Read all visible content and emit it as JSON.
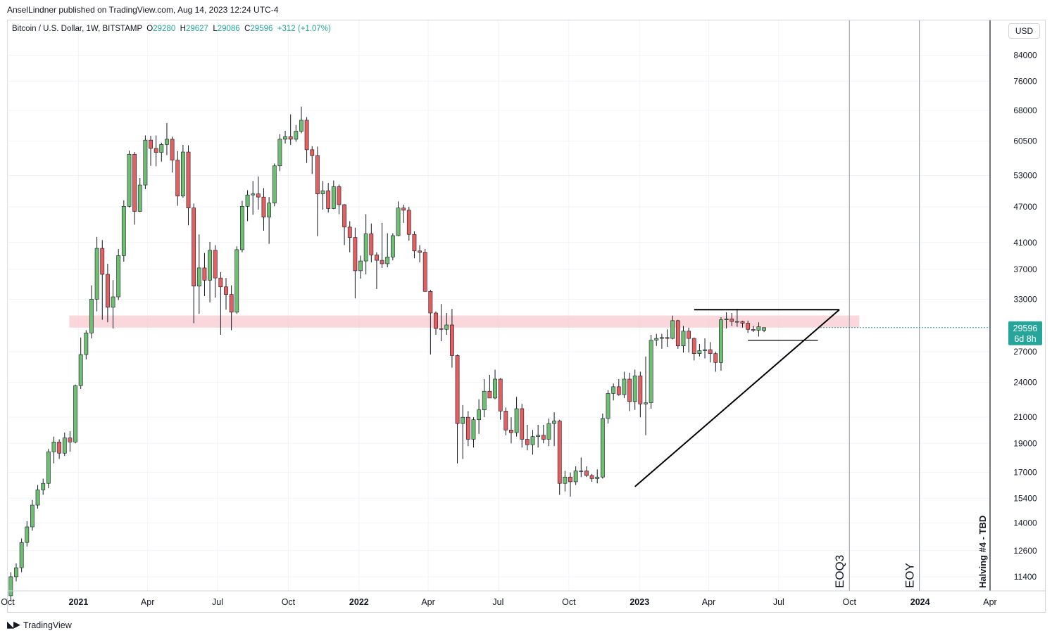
{
  "header": {
    "published_by": "AnselLindner published on TradingView.com, Aug 14, 2023 12:24 UTC-4"
  },
  "legend": {
    "symbol": "Bitcoin / U.S. Dollar, 1W, BITSTAMP",
    "open_label": "O",
    "open": "29280",
    "high_label": "H",
    "high": "29627",
    "low_label": "L",
    "low": "29086",
    "close_label": "C",
    "close": "29596",
    "change": "+312 (+1.07%)"
  },
  "currency_button": "USD",
  "price_tag": {
    "price": "29596",
    "countdown": "6d 8h"
  },
  "footer": {
    "brand": "TradingView"
  },
  "colors": {
    "up": "#26a69a",
    "up_fill": "#6fbf73",
    "down": "#ef5350",
    "down_fill": "#e45f60",
    "zone": "#f8c9cf",
    "tag": "#26a69a"
  },
  "chart_data": {
    "type": "candlestick",
    "scale": "log",
    "ylim": [
      10800,
      96000
    ],
    "x_range": [
      "2020-10-01",
      "2024-04-01"
    ],
    "y_ticks": [
      "84000",
      "76000",
      "68000",
      "60500",
      "53000",
      "47000",
      "41000",
      "37000",
      "33000",
      "29596",
      "27000",
      "24000",
      "21000",
      "19000",
      "17000",
      "15400",
      "14000",
      "12600",
      "11400"
    ],
    "x_ticks": [
      {
        "date": "2020-10-01",
        "label": "Oct",
        "bold": false
      },
      {
        "date": "2021-01-01",
        "label": "2021",
        "bold": true
      },
      {
        "date": "2021-04-01",
        "label": "Apr",
        "bold": false
      },
      {
        "date": "2021-07-01",
        "label": "Jul",
        "bold": false
      },
      {
        "date": "2021-10-01",
        "label": "Oct",
        "bold": false
      },
      {
        "date": "2022-01-01",
        "label": "2022",
        "bold": true
      },
      {
        "date": "2022-04-01",
        "label": "Apr",
        "bold": false
      },
      {
        "date": "2022-07-01",
        "label": "Jul",
        "bold": false
      },
      {
        "date": "2022-10-01",
        "label": "Oct",
        "bold": false
      },
      {
        "date": "2023-01-01",
        "label": "2023",
        "bold": true
      },
      {
        "date": "2023-04-01",
        "label": "Apr",
        "bold": false
      },
      {
        "date": "2023-07-01",
        "label": "Jul",
        "bold": false
      },
      {
        "date": "2023-10-01",
        "label": "Oct",
        "bold": false
      },
      {
        "date": "2024-01-01",
        "label": "2024",
        "bold": true
      },
      {
        "date": "2024-04-01",
        "label": "Apr",
        "bold": false
      }
    ],
    "candles_ohlc_weekly": [
      [
        10600,
        11600,
        10400,
        11400
      ],
      [
        11400,
        12000,
        11200,
        11800
      ],
      [
        11800,
        13200,
        11600,
        13000
      ],
      [
        13000,
        14100,
        12800,
        13800
      ],
      [
        13800,
        15300,
        13600,
        15000
      ],
      [
        15000,
        16200,
        14800,
        15900
      ],
      [
        15900,
        16600,
        15600,
        16300
      ],
      [
        16300,
        18600,
        16000,
        18400
      ],
      [
        18400,
        19500,
        17600,
        19100
      ],
      [
        19100,
        19300,
        17900,
        18300
      ],
      [
        18300,
        19800,
        18100,
        19400
      ],
      [
        19400,
        19900,
        18400,
        19100
      ],
      [
        19100,
        23800,
        19000,
        23700
      ],
      [
        23700,
        28500,
        23400,
        26700
      ],
      [
        26700,
        29300,
        26200,
        29000
      ],
      [
        29000,
        34800,
        28400,
        33000
      ],
      [
        33000,
        41900,
        31500,
        40100
      ],
      [
        40100,
        41400,
        30500,
        36300
      ],
      [
        36300,
        37800,
        30200,
        32000
      ],
      [
        32000,
        35500,
        29500,
        33300
      ],
      [
        33300,
        40000,
        32900,
        39000
      ],
      [
        39000,
        48200,
        38100,
        47100
      ],
      [
        47100,
        58300,
        46900,
        57500
      ],
      [
        57500,
        58000,
        43900,
        46200
      ],
      [
        46200,
        52500,
        46100,
        51100
      ],
      [
        51100,
        61800,
        50300,
        60700
      ],
      [
        60700,
        61700,
        55000,
        58800
      ],
      [
        58800,
        61800,
        54900,
        57900
      ],
      [
        57900,
        60100,
        55900,
        59700
      ],
      [
        59700,
        64800,
        57300,
        60900
      ],
      [
        60900,
        61500,
        53600,
        56200
      ],
      [
        56200,
        58200,
        47200,
        49000
      ],
      [
        49000,
        59600,
        48700,
        58000
      ],
      [
        58000,
        59500,
        43800,
        46800
      ],
      [
        46800,
        47600,
        30100,
        34700
      ],
      [
        34700,
        42300,
        31200,
        37200
      ],
      [
        37200,
        39400,
        33400,
        35500
      ],
      [
        35500,
        41100,
        32600,
        39800
      ],
      [
        39800,
        40600,
        33200,
        35800
      ],
      [
        35800,
        36600,
        28800,
        34600
      ],
      [
        34600,
        35800,
        31700,
        33600
      ],
      [
        33600,
        34800,
        29300,
        31400
      ],
      [
        31400,
        40400,
        31200,
        39900
      ],
      [
        39900,
        48100,
        39500,
        47100
      ],
      [
        47100,
        50100,
        44500,
        49200
      ],
      [
        49200,
        51900,
        45600,
        49400
      ],
      [
        49400,
        52800,
        46500,
        48800
      ],
      [
        48800,
        50500,
        42900,
        45200
      ],
      [
        45200,
        48800,
        40800,
        47700
      ],
      [
        47700,
        55500,
        47100,
        55000
      ],
      [
        55000,
        62100,
        53900,
        60900
      ],
      [
        60900,
        62900,
        59900,
        61500
      ],
      [
        61500,
        67000,
        59600,
        60900
      ],
      [
        60900,
        64300,
        60300,
        62800
      ],
      [
        62800,
        69000,
        62300,
        65500
      ],
      [
        65500,
        66300,
        55600,
        58500
      ],
      [
        58500,
        59300,
        53300,
        57200
      ],
      [
        57200,
        59200,
        42000,
        49400
      ],
      [
        49400,
        51900,
        46500,
        50000
      ],
      [
        50000,
        51500,
        46000,
        46700
      ],
      [
        46700,
        52000,
        46600,
        50800
      ],
      [
        50800,
        51200,
        45700,
        47400
      ],
      [
        47400,
        47500,
        40600,
        43500
      ],
      [
        43500,
        44500,
        39500,
        41800
      ],
      [
        41800,
        43400,
        33100,
        36800
      ],
      [
        36800,
        39000,
        35700,
        38200
      ],
      [
        38200,
        45700,
        36300,
        42400
      ],
      [
        42400,
        44100,
        38000,
        39100
      ],
      [
        39100,
        39500,
        34300,
        38300
      ],
      [
        38300,
        44200,
        37200,
        37800
      ],
      [
        37800,
        42500,
        37300,
        38800
      ],
      [
        38800,
        42500,
        38300,
        42100
      ],
      [
        42100,
        48000,
        42000,
        46800
      ],
      [
        46800,
        47400,
        44200,
        46400
      ],
      [
        46400,
        47000,
        41300,
        42300
      ],
      [
        42300,
        42800,
        38600,
        39700
      ],
      [
        39700,
        40600,
        38000,
        39500
      ],
      [
        39500,
        40000,
        34800,
        34000
      ],
      [
        34000,
        34200,
        26700,
        31300
      ],
      [
        31300,
        31500,
        28800,
        29500
      ],
      [
        29500,
        32400,
        28100,
        29400
      ],
      [
        29400,
        31300,
        28800,
        29900
      ],
      [
        29900,
        31800,
        25400,
        26600
      ],
      [
        26600,
        26700,
        17600,
        20500
      ],
      [
        20500,
        22000,
        17900,
        21000
      ],
      [
        21000,
        21500,
        18800,
        19300
      ],
      [
        19300,
        21000,
        18700,
        20800
      ],
      [
        20800,
        22500,
        19700,
        21600
      ],
      [
        21600,
        24300,
        21000,
        23200
      ],
      [
        23200,
        24700,
        22700,
        22600
      ],
      [
        22600,
        25200,
        22500,
        24300
      ],
      [
        24300,
        24400,
        20800,
        21500
      ],
      [
        21500,
        21800,
        19600,
        20000
      ],
      [
        20000,
        21000,
        19000,
        19800
      ],
      [
        19800,
        22700,
        19500,
        21700
      ],
      [
        21700,
        22100,
        18700,
        19300
      ],
      [
        19300,
        20400,
        18500,
        18900
      ],
      [
        18900,
        20000,
        18200,
        19500
      ],
      [
        19500,
        20400,
        18700,
        19600
      ],
      [
        19600,
        20400,
        19000,
        19300
      ],
      [
        19300,
        20900,
        18800,
        20500
      ],
      [
        20500,
        21400,
        18800,
        20700
      ],
      [
        20700,
        20800,
        15600,
        16300
      ],
      [
        16300,
        17100,
        15800,
        16700
      ],
      [
        16700,
        17000,
        15500,
        16400
      ],
      [
        16400,
        17400,
        16200,
        17100
      ],
      [
        17100,
        18000,
        16700,
        17100
      ],
      [
        17100,
        17400,
        16700,
        16800
      ],
      [
        16800,
        16900,
        16400,
        16600
      ],
      [
        16600,
        17200,
        16300,
        16700
      ],
      [
        16700,
        21300,
        16600,
        20900
      ],
      [
        20900,
        23300,
        20500,
        23000
      ],
      [
        23000,
        23900,
        22400,
        23600
      ],
      [
        23600,
        24300,
        22800,
        22900
      ],
      [
        22900,
        25000,
        22600,
        24300
      ],
      [
        24300,
        24900,
        21500,
        22300
      ],
      [
        22300,
        25200,
        21600,
        24600
      ],
      [
        24600,
        25000,
        21000,
        22100
      ],
      [
        22100,
        26500,
        19600,
        22200
      ],
      [
        22200,
        28800,
        21700,
        28200
      ],
      [
        28200,
        28900,
        27600,
        28400
      ],
      [
        28400,
        28900,
        27300,
        28500
      ],
      [
        28500,
        29400,
        27500,
        28400
      ],
      [
        28400,
        31000,
        28300,
        30400
      ],
      [
        30400,
        30500,
        27300,
        27600
      ],
      [
        27600,
        29800,
        26900,
        29200
      ],
      [
        29200,
        29600,
        26900,
        28400
      ],
      [
        28400,
        28500,
        26100,
        26800
      ],
      [
        26800,
        27800,
        26500,
        27100
      ],
      [
        27100,
        28400,
        26300,
        27200
      ],
      [
        27200,
        28000,
        25900,
        26800
      ],
      [
        26800,
        27000,
        25000,
        25900
      ],
      [
        25900,
        30800,
        25100,
        30500
      ],
      [
        30500,
        31400,
        29500,
        30600
      ],
      [
        30600,
        31300,
        29800,
        30300
      ],
      [
        30300,
        31800,
        29700,
        30300
      ],
      [
        30300,
        30400,
        29600,
        30100
      ],
      [
        30100,
        30400,
        29000,
        29400
      ],
      [
        29400,
        29800,
        29100,
        29300
      ],
      [
        29300,
        30200,
        28600,
        29700
      ],
      [
        29280,
        29627,
        29086,
        29596
      ]
    ],
    "resistance_zone": [
      29600,
      31000
    ],
    "trendlines": [
      {
        "name": "ascending-support",
        "from": [
          "2022-12-26",
          16100
        ],
        "to": [
          "2023-09-18",
          31700
        ]
      },
      {
        "name": "flat-resistance",
        "from": [
          "2023-03-13",
          31700
        ],
        "to": [
          "2023-09-18",
          31700
        ]
      },
      {
        "name": "inner-support",
        "from": [
          "2023-05-22",
          28200
        ],
        "to": [
          "2023-08-21",
          28200
        ]
      }
    ],
    "vertical_markers": [
      {
        "date": "2023-10-01",
        "label": "EOQ3"
      },
      {
        "date": "2023-12-31",
        "label": "EOY"
      },
      {
        "date": "2024-04-01",
        "label": "Halving #4 - TBD"
      }
    ]
  }
}
